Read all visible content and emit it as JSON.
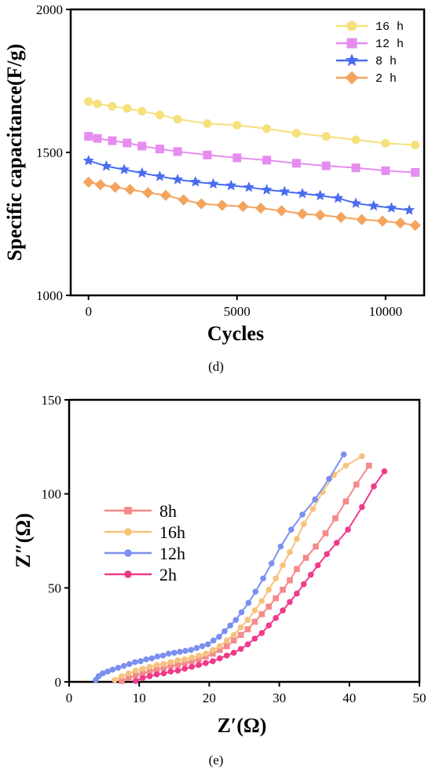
{
  "colors": {
    "16h_d": "#f5e07a",
    "12h_d": "#e68cf0",
    "8h_d": "#4a6cf0",
    "2h_d": "#f3a45e",
    "8h_e": "#f48a8a",
    "16h_e": "#f7c27d",
    "12h_e": "#7b8ff0",
    "2h_e": "#f03a8c"
  },
  "chart_data": [
    {
      "type": "line",
      "panel_label": "(d)",
      "xlabel": "Cycles",
      "ylabel": "Specific capacitance(F/g)",
      "xlim": [
        -600,
        11300
      ],
      "ylim": [
        1000,
        2000
      ],
      "xticks": [
        0,
        5000,
        10000
      ],
      "xtick_labels": [
        "0",
        "5000",
        "10000"
      ],
      "yticks": [
        1000,
        1500,
        2000
      ],
      "ytick_labels": [
        "1000",
        "1500",
        "2000"
      ],
      "legend_position": "top-right",
      "series": [
        {
          "name": "16 h",
          "marker": "circle",
          "x": [
            0,
            300,
            800,
            1300,
            1800,
            2400,
            3000,
            4000,
            5000,
            6000,
            7000,
            8000,
            9000,
            10000,
            11000
          ],
          "y": [
            1678,
            1670,
            1661,
            1654,
            1644,
            1631,
            1616,
            1601,
            1595,
            1583,
            1567,
            1556,
            1544,
            1532,
            1526
          ]
        },
        {
          "name": "12 h",
          "marker": "square",
          "x": [
            0,
            300,
            800,
            1300,
            1800,
            2400,
            3000,
            4000,
            5000,
            6000,
            7000,
            8000,
            9000,
            10000,
            11000
          ],
          "y": [
            1556,
            1549,
            1541,
            1533,
            1522,
            1512,
            1503,
            1491,
            1481,
            1473,
            1462,
            1453,
            1446,
            1436,
            1430
          ]
        },
        {
          "name": "8 h",
          "marker": "star",
          "x": [
            0,
            600,
            1200,
            1800,
            2400,
            3000,
            3600,
            4200,
            4800,
            5400,
            6000,
            6600,
            7200,
            7800,
            8400,
            9000,
            9600,
            10200,
            10800
          ],
          "y": [
            1471,
            1452,
            1440,
            1428,
            1416,
            1405,
            1397,
            1390,
            1384,
            1378,
            1369,
            1363,
            1356,
            1349,
            1340,
            1322,
            1313,
            1306,
            1298
          ]
        },
        {
          "name": "2 h",
          "marker": "diamond",
          "x": [
            0,
            400,
            900,
            1400,
            2000,
            2600,
            3200,
            3800,
            4500,
            5200,
            5800,
            6500,
            7200,
            7800,
            8500,
            9200,
            9900,
            10500,
            11000
          ],
          "y": [
            1396,
            1387,
            1378,
            1370,
            1359,
            1350,
            1334,
            1320,
            1315,
            1311,
            1305,
            1296,
            1285,
            1281,
            1273,
            1265,
            1260,
            1253,
            1245
          ]
        }
      ]
    },
    {
      "type": "line",
      "panel_label": "(e)",
      "xlabel": "Z′(Ω)",
      "ylabel": "Z″(Ω)",
      "xlim": [
        0,
        50
      ],
      "ylim": [
        0,
        150
      ],
      "xticks": [
        0,
        10,
        20,
        30,
        40,
        50
      ],
      "xtick_labels": [
        "0",
        "10",
        "20",
        "30",
        "40",
        "50"
      ],
      "yticks": [
        0,
        50,
        100,
        150
      ],
      "ytick_labels": [
        "0",
        "50",
        "100",
        "150"
      ],
      "legend_position": "center-left",
      "series": [
        {
          "name": "8h",
          "marker": "square",
          "x": [
            7.5,
            8.5,
            9.5,
            10.5,
            11.5,
            12.5,
            13.5,
            14.5,
            15.5,
            16.5,
            17.5,
            18.5,
            19.5,
            20.5,
            21.5,
            22.5,
            23.5,
            24.5,
            25.5,
            26.5,
            27.5,
            28.5,
            29.5,
            30.5,
            31.5,
            32.5,
            33.8,
            35.2,
            36.6,
            38.0,
            39.5,
            41.0,
            42.8
          ],
          "y": [
            0.5,
            2,
            3.5,
            4.5,
            5.5,
            6.5,
            7.5,
            8.5,
            9,
            10,
            11,
            12,
            13.5,
            15,
            17,
            19,
            22,
            25,
            28,
            32,
            36,
            40,
            44.5,
            49,
            54,
            60,
            66,
            72,
            79,
            87,
            96,
            105,
            115
          ]
        },
        {
          "name": "16h",
          "marker": "circle",
          "x": [
            6.5,
            7.5,
            8.5,
            9.5,
            10.5,
            11.5,
            12.5,
            13.5,
            14.5,
            15.5,
            16.5,
            17.5,
            18.5,
            19.5,
            20.5,
            21.5,
            22.5,
            23.5,
            24.5,
            25.5,
            26.5,
            27.5,
            28.5,
            29.5,
            30.5,
            31.5,
            32.5,
            33.5,
            34.8,
            36.2,
            37.8,
            39.5,
            41.8
          ],
          "y": [
            1,
            3,
            4.5,
            6,
            7,
            8,
            9,
            9.5,
            10.5,
            11.5,
            12,
            13,
            14,
            15,
            17,
            19,
            22,
            25,
            29,
            33,
            38,
            43,
            49,
            55,
            62,
            69,
            76,
            84,
            92,
            101,
            110,
            115,
            120
          ]
        },
        {
          "name": "12h",
          "marker": "circle",
          "x": [
            3.8,
            4.2,
            4.8,
            5.5,
            6.2,
            7.0,
            7.8,
            8.6,
            9.4,
            10.2,
            11.0,
            11.8,
            12.6,
            13.4,
            14.2,
            15.0,
            15.8,
            16.6,
            17.4,
            18.2,
            19.0,
            19.8,
            20.6,
            21.4,
            22.2,
            23.0,
            23.8,
            24.6,
            25.6,
            26.6,
            27.7,
            28.9,
            30.2,
            31.7,
            33.3,
            35.1,
            37.1,
            39.2
          ],
          "y": [
            1,
            3,
            4.5,
            5.5,
            6.5,
            7.5,
            8.5,
            9.5,
            10.5,
            11,
            12,
            12.5,
            13.5,
            14,
            15,
            15.5,
            16,
            16.5,
            17,
            18,
            19,
            20,
            22,
            24,
            27,
            30,
            33,
            37,
            42,
            48,
            55,
            63,
            72,
            81,
            89,
            97,
            108,
            121
          ]
        },
        {
          "name": "2h",
          "marker": "circle",
          "x": [
            9.5,
            10.5,
            11.5,
            12.5,
            13.5,
            14.5,
            15.5,
            16.5,
            17.5,
            18.5,
            19.5,
            20.5,
            21.5,
            22.5,
            23.5,
            24.5,
            25.5,
            26.5,
            27.5,
            28.5,
            29.5,
            30.5,
            31.5,
            32.5,
            33.5,
            34.5,
            35.5,
            36.8,
            38.2,
            39.8,
            41.8,
            43.5,
            45.0
          ],
          "y": [
            0.5,
            2,
            3,
            4,
            4.5,
            5.5,
            6,
            7,
            8,
            9,
            10,
            11,
            12.5,
            14,
            15.5,
            17.5,
            20,
            23,
            26,
            30,
            34,
            38,
            42.5,
            47,
            52,
            57,
            62,
            68,
            74,
            81,
            93,
            104,
            112
          ]
        }
      ]
    }
  ]
}
